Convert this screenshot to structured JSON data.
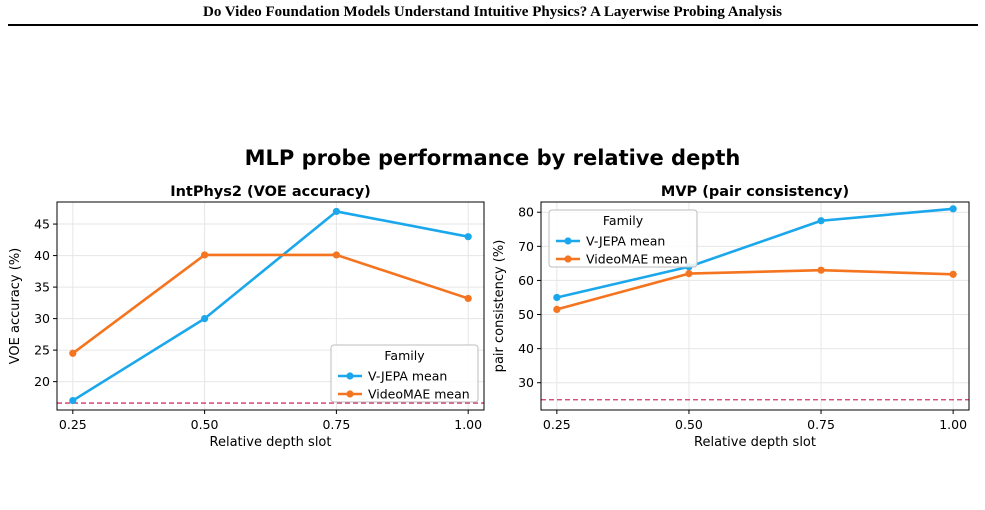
{
  "header": {
    "title": "Do Video Foundation Models Understand Intuitive Physics?  A Layerwise Probing Analysis"
  },
  "figure": {
    "suptitle": "MLP probe performance by relative depth"
  },
  "colors": {
    "vjepa": "#1aa7ec",
    "videomae": "#f4741f",
    "chance": "#d6336c",
    "grid": "#e6e6e6"
  },
  "chart_data": [
    {
      "type": "line",
      "title": "IntPhys2 (VOE accuracy)",
      "xlabel": "Relative depth slot",
      "ylabel": "VOE accuracy (%)",
      "x": [
        0.25,
        0.5,
        0.75,
        1.0
      ],
      "xticks": [
        "0.25",
        "0.50",
        "0.75",
        "1.00"
      ],
      "xlim": [
        0.22,
        1.03
      ],
      "yticks": [
        "20",
        "25",
        "30",
        "35",
        "40",
        "45"
      ],
      "ylim": [
        15.5,
        48.5
      ],
      "series": [
        {
          "name": "V-JEPA mean",
          "values": [
            17.0,
            30.0,
            47.0,
            43.0
          ]
        },
        {
          "name": "VideoMAE mean",
          "values": [
            24.5,
            40.1,
            40.1,
            33.2
          ]
        }
      ],
      "chance_line": 16.6,
      "legend": {
        "title": "Family",
        "position": "lower-right"
      },
      "grid": true
    },
    {
      "type": "line",
      "title": "MVP (pair consistency)",
      "xlabel": "Relative depth slot",
      "ylabel": "pair consistency (%)",
      "x": [
        0.25,
        0.5,
        0.75,
        1.0
      ],
      "xticks": [
        "0.25",
        "0.50",
        "0.75",
        "1.00"
      ],
      "xlim": [
        0.22,
        1.03
      ],
      "yticks": [
        "30",
        "40",
        "50",
        "60",
        "70",
        "80"
      ],
      "ylim": [
        22.0,
        83.0
      ],
      "series": [
        {
          "name": "V-JEPA mean",
          "values": [
            55.0,
            64.0,
            77.5,
            81.0
          ]
        },
        {
          "name": "VideoMAE mean",
          "values": [
            51.5,
            62.0,
            63.0,
            61.8
          ]
        }
      ],
      "chance_line": 25.0,
      "legend": {
        "title": "Family",
        "position": "top-left"
      },
      "grid": true
    }
  ]
}
